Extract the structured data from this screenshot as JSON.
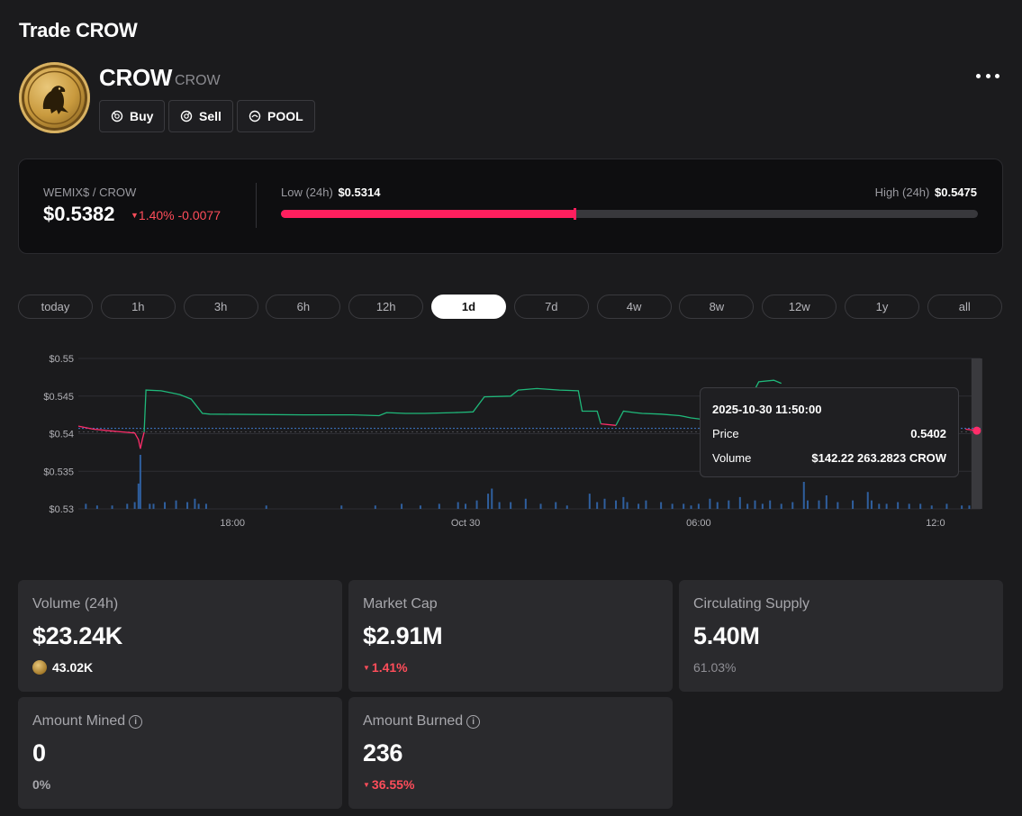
{
  "page": {
    "title": "Trade CROW"
  },
  "token": {
    "name": "CROW",
    "symbol": "CROW"
  },
  "actions": {
    "buy": "Buy",
    "sell": "Sell",
    "pool": "POOL"
  },
  "pair": {
    "label": "WEMIX$ / CROW",
    "price": "$0.5382",
    "change": "1.40% -0.0077",
    "low_label": "Low (24h)",
    "low_value": "$0.5314",
    "high_label": "High (24h)",
    "high_value": "$0.5475",
    "range_fraction": 0.42,
    "colors": {
      "down": "#ff4d5a",
      "range_fill": "#ff1f5e"
    }
  },
  "timeframes": [
    "today",
    "1h",
    "3h",
    "6h",
    "12h",
    "1d",
    "7d",
    "4w",
    "8w",
    "12w",
    "1y",
    "all"
  ],
  "active_timeframe": "1d",
  "tooltip": {
    "time": "2025-10-30 11:50:00",
    "price_label": "Price",
    "price_value": "0.5402",
    "volume_label": "Volume",
    "volume_value": "$142.22 263.2823 CROW"
  },
  "chart_data": {
    "type": "line",
    "y_ticks": [
      "$0.55",
      "$0.545",
      "$0.54",
      "$0.535",
      "$0.53"
    ],
    "y_tick_values": [
      0.55,
      0.545,
      0.54,
      0.535,
      0.53
    ],
    "ylim": [
      0.53,
      0.55
    ],
    "x_ticks": [
      "18:00",
      "Oct 30",
      "06:00",
      "12:0"
    ],
    "x_tick_hours": [
      4.1,
      10.3,
      16.5,
      22.8
    ],
    "x_range_hours": [
      0,
      24
    ],
    "reference_price": 0.5407,
    "colors": {
      "up": "#1fb87a",
      "down": "#ff2d6a",
      "volume": "#2f5f9e",
      "grid": "#2e2e33"
    },
    "price_series": [
      {
        "color": "down",
        "points": [
          [
            0.0,
            0.541
          ],
          [
            0.4,
            0.5406
          ],
          [
            1.0,
            0.5403
          ],
          [
            1.5,
            0.5401
          ],
          [
            1.6,
            0.5392
          ],
          [
            1.65,
            0.538
          ],
          [
            1.7,
            0.5392
          ],
          [
            1.75,
            0.5402
          ]
        ]
      },
      {
        "color": "up",
        "points": [
          [
            1.75,
            0.5402
          ],
          [
            1.8,
            0.5458
          ],
          [
            2.2,
            0.5457
          ],
          [
            2.5,
            0.5454
          ],
          [
            2.7,
            0.5452
          ],
          [
            3.0,
            0.5446
          ],
          [
            3.3,
            0.5427
          ],
          [
            3.5,
            0.5426
          ],
          [
            6.0,
            0.5425
          ],
          [
            7.3,
            0.5425
          ],
          [
            8.0,
            0.5424
          ],
          [
            8.2,
            0.5428
          ],
          [
            8.7,
            0.5427
          ],
          [
            9.2,
            0.5427
          ],
          [
            10.0,
            0.5428
          ],
          [
            10.5,
            0.5429
          ],
          [
            10.8,
            0.5449
          ],
          [
            11.5,
            0.545
          ],
          [
            11.7,
            0.5458
          ],
          [
            12.2,
            0.546
          ],
          [
            12.8,
            0.5458
          ],
          [
            13.3,
            0.5457
          ],
          [
            13.4,
            0.543
          ],
          [
            13.8,
            0.543
          ],
          [
            13.9,
            0.5413
          ]
        ]
      },
      {
        "color": "down",
        "points": [
          [
            13.9,
            0.5413
          ],
          [
            14.3,
            0.5411
          ]
        ]
      },
      {
        "color": "up",
        "points": [
          [
            14.3,
            0.5411
          ],
          [
            14.5,
            0.543
          ],
          [
            14.8,
            0.5428
          ],
          [
            15.0,
            0.5427
          ],
          [
            15.5,
            0.5426
          ],
          [
            16.0,
            0.5424
          ],
          [
            16.3,
            0.5421
          ],
          [
            16.6,
            0.5419
          ],
          [
            16.7,
            0.5412
          ]
        ]
      },
      {
        "color": "down",
        "points": [
          [
            16.7,
            0.5412
          ],
          [
            16.9,
            0.5412
          ]
        ]
      },
      {
        "color": "up",
        "points": [
          [
            16.9,
            0.5412
          ],
          [
            17.1,
            0.5432
          ],
          [
            17.5,
            0.5438
          ],
          [
            17.8,
            0.544
          ],
          [
            18.1,
            0.5469
          ],
          [
            18.5,
            0.5471
          ],
          [
            18.7,
            0.5467
          ]
        ]
      },
      {
        "color": "down",
        "points": [
          [
            19.3,
            0.536
          ],
          [
            19.5,
            0.5357
          ],
          [
            20.1,
            0.5356
          ],
          [
            20.3,
            0.5351
          ],
          [
            20.8,
            0.535
          ],
          [
            21.0,
            0.5353
          ]
        ]
      },
      {
        "color": "down",
        "points": [
          [
            23.6,
            0.5406
          ],
          [
            23.9,
            0.5404
          ]
        ]
      }
    ],
    "last_point": {
      "x": 23.9,
      "y": 0.5404
    },
    "volume_bars": [
      [
        0.2,
        0.3
      ],
      [
        0.5,
        0.2
      ],
      [
        0.9,
        0.2
      ],
      [
        1.3,
        0.3
      ],
      [
        1.5,
        0.4
      ],
      [
        1.6,
        1.5
      ],
      [
        1.65,
        3.2
      ],
      [
        1.9,
        0.3
      ],
      [
        2.0,
        0.3
      ],
      [
        2.3,
        0.4
      ],
      [
        2.6,
        0.5
      ],
      [
        2.9,
        0.4
      ],
      [
        3.1,
        0.6
      ],
      [
        3.2,
        0.3
      ],
      [
        3.4,
        0.3
      ],
      [
        5.0,
        0.2
      ],
      [
        7.0,
        0.2
      ],
      [
        7.9,
        0.2
      ],
      [
        8.6,
        0.3
      ],
      [
        9.1,
        0.2
      ],
      [
        9.6,
        0.3
      ],
      [
        10.1,
        0.4
      ],
      [
        10.3,
        0.3
      ],
      [
        10.6,
        0.5
      ],
      [
        10.9,
        0.9
      ],
      [
        11.0,
        1.2
      ],
      [
        11.2,
        0.4
      ],
      [
        11.5,
        0.4
      ],
      [
        11.9,
        0.6
      ],
      [
        12.3,
        0.3
      ],
      [
        12.7,
        0.4
      ],
      [
        13.0,
        0.2
      ],
      [
        13.6,
        0.9
      ],
      [
        13.8,
        0.4
      ],
      [
        14.0,
        0.6
      ],
      [
        14.3,
        0.5
      ],
      [
        14.5,
        0.7
      ],
      [
        14.6,
        0.4
      ],
      [
        14.9,
        0.3
      ],
      [
        15.1,
        0.5
      ],
      [
        15.5,
        0.4
      ],
      [
        15.8,
        0.3
      ],
      [
        16.1,
        0.3
      ],
      [
        16.3,
        0.2
      ],
      [
        16.5,
        0.3
      ],
      [
        16.8,
        0.6
      ],
      [
        17.0,
        0.4
      ],
      [
        17.3,
        0.5
      ],
      [
        17.6,
        0.7
      ],
      [
        17.8,
        0.3
      ],
      [
        18.0,
        0.5
      ],
      [
        18.2,
        0.3
      ],
      [
        18.4,
        0.5
      ],
      [
        18.7,
        0.3
      ],
      [
        19.0,
        0.4
      ],
      [
        19.3,
        1.6
      ],
      [
        19.4,
        0.5
      ],
      [
        19.7,
        0.5
      ],
      [
        19.9,
        0.8
      ],
      [
        20.2,
        0.4
      ],
      [
        20.6,
        0.5
      ],
      [
        21.0,
        1.0
      ],
      [
        21.1,
        0.5
      ],
      [
        21.3,
        0.3
      ],
      [
        21.5,
        0.3
      ],
      [
        21.8,
        0.4
      ],
      [
        22.1,
        0.3
      ],
      [
        22.4,
        0.3
      ],
      [
        22.7,
        0.2
      ],
      [
        23.1,
        0.3
      ],
      [
        23.5,
        0.2
      ],
      [
        23.7,
        0.2
      ]
    ],
    "volume_max": 3.2,
    "cursor_x": 23.9
  },
  "stats": {
    "volume": {
      "label": "Volume (24h)",
      "value": "$23.24K",
      "sub": "43.02K"
    },
    "market_cap": {
      "label": "Market Cap",
      "value": "$2.91M",
      "sub": "1.41%"
    },
    "circulating": {
      "label": "Circulating Supply",
      "value": "5.40M",
      "sub": "61.03%"
    },
    "mined": {
      "label": "Amount Mined",
      "value": "0",
      "sub": "0%"
    },
    "burned": {
      "label": "Amount Burned",
      "value": "236",
      "sub": "36.55%"
    }
  }
}
